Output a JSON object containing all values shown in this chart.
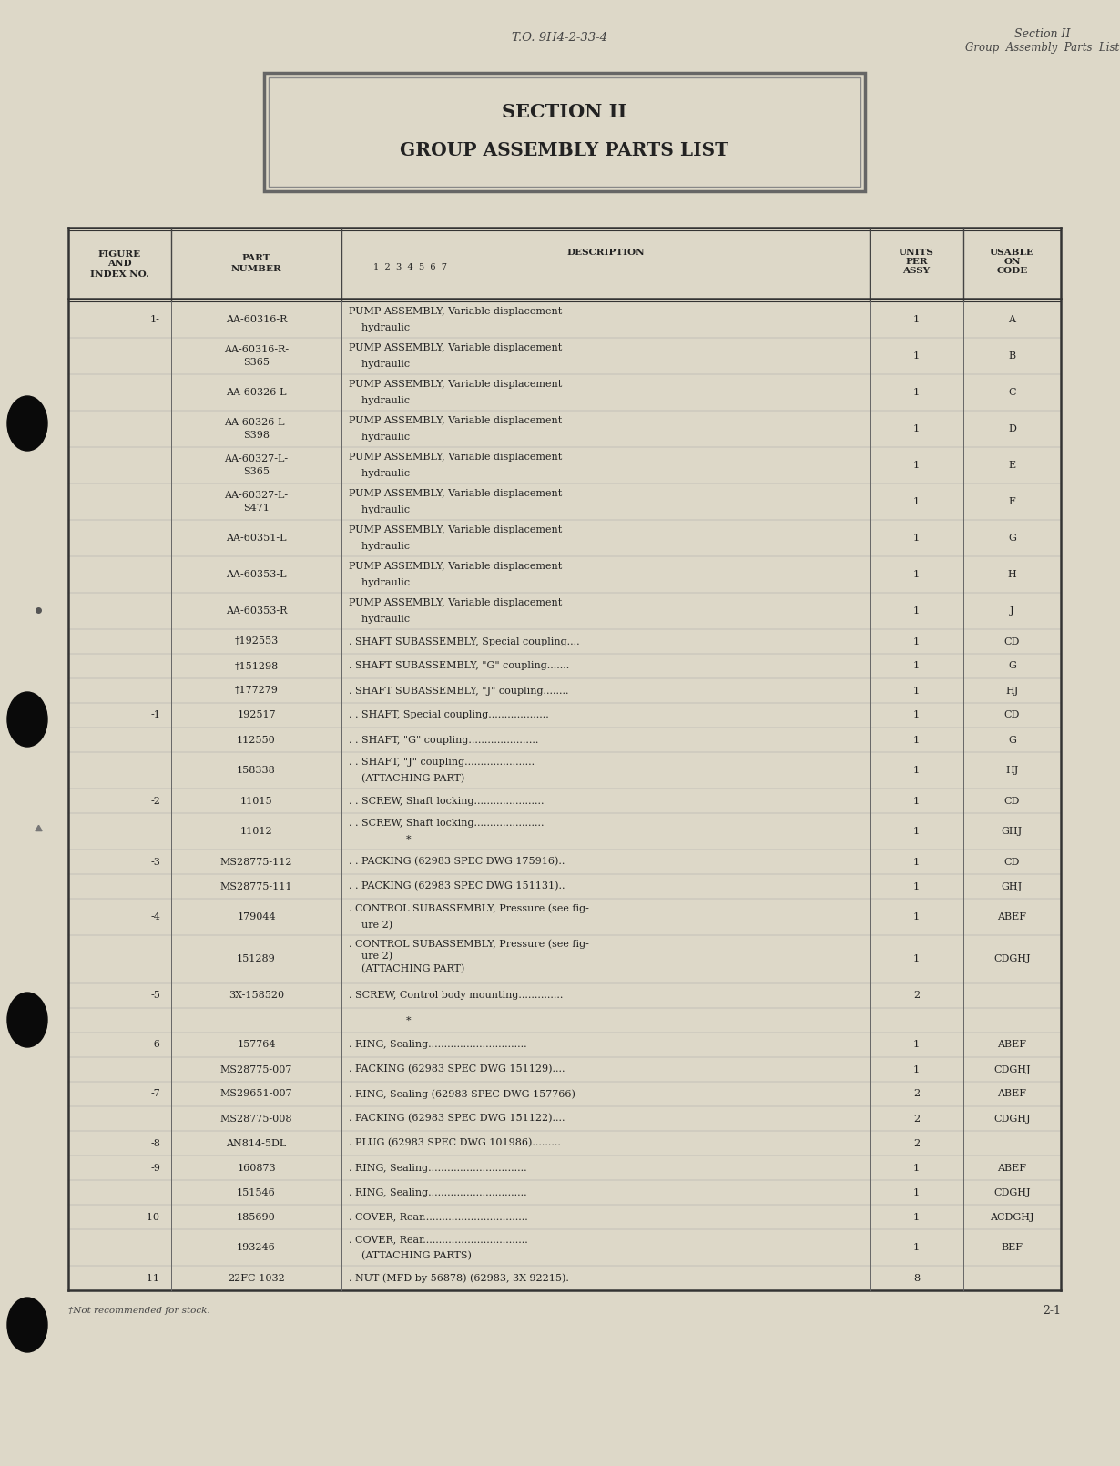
{
  "bg_color": "#ddd8c8",
  "header_left": "T.O. 9H4-2-33-4",
  "header_right_line1": "Section II",
  "header_right_line2": "Group  Assembly  Parts  List",
  "title_line1": "SECTION II",
  "title_line2": "GROUP ASSEMBLY PARTS LIST",
  "footer_text": "†Not recommended for stock.",
  "page_number": "2-1",
  "rows": [
    {
      "fig": "1-",
      "part": "AA-60316-R",
      "desc1": "PUMP ASSEMBLY, Variable displacement",
      "desc2": "    hydraulic",
      "units": "1",
      "code": "A"
    },
    {
      "fig": "",
      "part": "AA-60316-R-\nS365",
      "desc1": "PUMP ASSEMBLY, Variable displacement",
      "desc2": "    hydraulic",
      "units": "1",
      "code": "B"
    },
    {
      "fig": "",
      "part": "AA-60326-L",
      "desc1": "PUMP ASSEMBLY, Variable displacement",
      "desc2": "    hydraulic",
      "units": "1",
      "code": "C"
    },
    {
      "fig": "",
      "part": "AA-60326-L-\nS398",
      "desc1": "PUMP ASSEMBLY, Variable displacement",
      "desc2": "    hydraulic",
      "units": "1",
      "code": "D"
    },
    {
      "fig": "",
      "part": "AA-60327-L-\nS365",
      "desc1": "PUMP ASSEMBLY, Variable displacement",
      "desc2": "    hydraulic",
      "units": "1",
      "code": "E"
    },
    {
      "fig": "",
      "part": "AA-60327-L-\nS471",
      "desc1": "PUMP ASSEMBLY, Variable displacement",
      "desc2": "    hydraulic",
      "units": "1",
      "code": "F"
    },
    {
      "fig": "",
      "part": "AA-60351-L",
      "desc1": "PUMP ASSEMBLY, Variable displacement",
      "desc2": "    hydraulic",
      "units": "1",
      "code": "G"
    },
    {
      "fig": "",
      "part": "AA-60353-L",
      "desc1": "PUMP ASSEMBLY, Variable displacement",
      "desc2": "    hydraulic",
      "units": "1",
      "code": "H"
    },
    {
      "fig": "",
      "part": "AA-60353-R",
      "desc1": "PUMP ASSEMBLY, Variable displacement",
      "desc2": "    hydraulic",
      "units": "1",
      "code": "J"
    },
    {
      "fig": "",
      "part": "†192553",
      "desc1": ". SHAFT SUBASSEMBLY, Special coupling....",
      "desc2": "",
      "units": "1",
      "code": "CD"
    },
    {
      "fig": "",
      "part": "†151298",
      "desc1": ". SHAFT SUBASSEMBLY, \"G\" coupling.......",
      "desc2": "",
      "units": "1",
      "code": "G"
    },
    {
      "fig": "",
      "part": "†177279",
      "desc1": ". SHAFT SUBASSEMBLY, \"J\" coupling........",
      "desc2": "",
      "units": "1",
      "code": "HJ"
    },
    {
      "fig": "-1",
      "part": "192517",
      "desc1": ". . SHAFT, Special coupling...................",
      "desc2": "",
      "units": "1",
      "code": "CD"
    },
    {
      "fig": "",
      "part": "112550",
      "desc1": ". . SHAFT, \"G\" coupling......................",
      "desc2": "",
      "units": "1",
      "code": "G"
    },
    {
      "fig": "",
      "part": "158338",
      "desc1": ". . SHAFT, \"J\" coupling......................",
      "desc2": "    (ATTACHING PART)",
      "units": "1",
      "code": "HJ"
    },
    {
      "fig": "-2",
      "part": "11015",
      "desc1": ". . SCREW, Shaft locking......................",
      "desc2": "",
      "units": "1",
      "code": "CD"
    },
    {
      "fig": "",
      "part": "11012",
      "desc1": ". . SCREW, Shaft locking......................",
      "desc2": "                  *",
      "units": "1",
      "code": "GHJ"
    },
    {
      "fig": "-3",
      "part": "MS28775-112",
      "desc1": ". . PACKING (62983 SPEC DWG 175916)..",
      "desc2": "",
      "units": "1",
      "code": "CD"
    },
    {
      "fig": "",
      "part": "MS28775-111",
      "desc1": ". . PACKING (62983 SPEC DWG 151131)..",
      "desc2": "",
      "units": "1",
      "code": "GHJ"
    },
    {
      "fig": "-4",
      "part": "179044",
      "desc1": ". CONTROL SUBASSEMBLY, Pressure (see fig-",
      "desc2": "    ure 2)",
      "units": "1",
      "code": "ABEF"
    },
    {
      "fig": "",
      "part": "151289",
      "desc1": ". CONTROL SUBASSEMBLY, Pressure (see fig-",
      "desc2": "    ure 2)\n    (ATTACHING PART)",
      "units": "1",
      "code": "CDGHJ"
    },
    {
      "fig": "-5",
      "part": "3X-158520",
      "desc1": ". SCREW, Control body mounting..............",
      "desc2": "",
      "units": "2",
      "code": ""
    },
    {
      "fig": "",
      "part": "",
      "desc1": "                  *",
      "desc2": "",
      "units": "",
      "code": ""
    },
    {
      "fig": "-6",
      "part": "157764",
      "desc1": ". RING, Sealing...............................",
      "desc2": "",
      "units": "1",
      "code": "ABEF"
    },
    {
      "fig": "",
      "part": "MS28775-007",
      "desc1": ". PACKING (62983 SPEC DWG 151129)....",
      "desc2": "",
      "units": "1",
      "code": "CDGHJ"
    },
    {
      "fig": "-7",
      "part": "MS29651-007",
      "desc1": ". RING, Sealing (62983 SPEC DWG 157766)",
      "desc2": "",
      "units": "2",
      "code": "ABEF"
    },
    {
      "fig": "",
      "part": "MS28775-008",
      "desc1": ". PACKING (62983 SPEC DWG 151122)....",
      "desc2": "",
      "units": "2",
      "code": "CDGHJ"
    },
    {
      "fig": "-8",
      "part": "AN814-5DL",
      "desc1": ". PLUG (62983 SPEC DWG 101986).........",
      "desc2": "",
      "units": "2",
      "code": ""
    },
    {
      "fig": "-9",
      "part": "160873",
      "desc1": ". RING, Sealing...............................",
      "desc2": "",
      "units": "1",
      "code": "ABEF"
    },
    {
      "fig": "",
      "part": "151546",
      "desc1": ". RING, Sealing...............................",
      "desc2": "",
      "units": "1",
      "code": "CDGHJ"
    },
    {
      "fig": "-10",
      "part": "185690",
      "desc1": ". COVER, Rear.................................",
      "desc2": "",
      "units": "1",
      "code": "ACDGHJ"
    },
    {
      "fig": "",
      "part": "193246",
      "desc1": ". COVER, Rear.................................",
      "desc2": "    (ATTACHING PARTS)",
      "units": "1",
      "code": "BEF"
    },
    {
      "fig": "-11",
      "part": "22FC-1032",
      "desc1": ". NUT (MFD by 56878) (62983, 3X-92215).",
      "desc2": "",
      "units": "8",
      "code": ""
    }
  ]
}
